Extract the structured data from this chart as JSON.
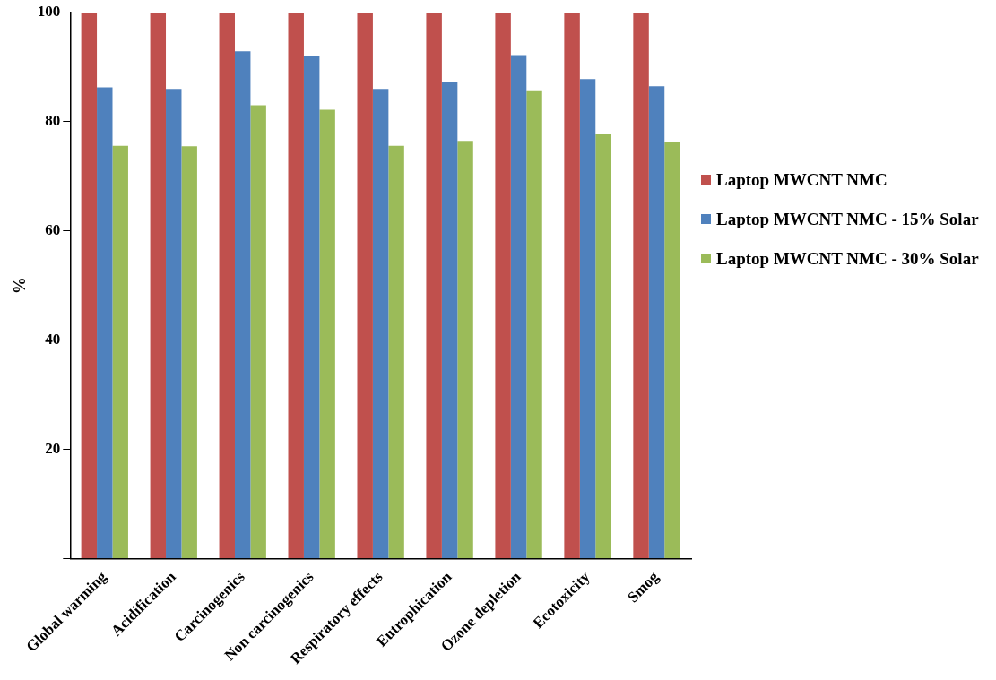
{
  "chart_data": {
    "type": "bar",
    "ylabel": "%",
    "categories": [
      "Global warming",
      "Acidification",
      "Carcinogenics",
      "Non carcinogenics",
      "Respiratory effects",
      "Eutrophication",
      "Ozone depletion",
      "Ecotoxicity",
      "Smog"
    ],
    "series": [
      {
        "name": "Laptop MWCNT NMC",
        "color": "#c0504d",
        "values": [
          100,
          100,
          100,
          100,
          100,
          100,
          100,
          100,
          100
        ]
      },
      {
        "name": "Laptop MWCNT NMC - 15% Solar",
        "color": "#4f81bd",
        "values": [
          86.3,
          86.0,
          92.9,
          92.0,
          86.0,
          87.3,
          92.2,
          87.8,
          86.5
        ]
      },
      {
        "name": "Laptop MWCNT NMC - 30% Solar",
        "color": "#9bbb59",
        "values": [
          75.6,
          75.5,
          83.0,
          82.2,
          75.6,
          76.5,
          85.6,
          77.7,
          76.2
        ]
      }
    ],
    "ylim": [
      0,
      100
    ],
    "yticks": [
      {
        "value": 0,
        "label": null
      },
      20,
      40,
      60,
      80,
      100
    ],
    "grid": false,
    "legend": "right"
  }
}
